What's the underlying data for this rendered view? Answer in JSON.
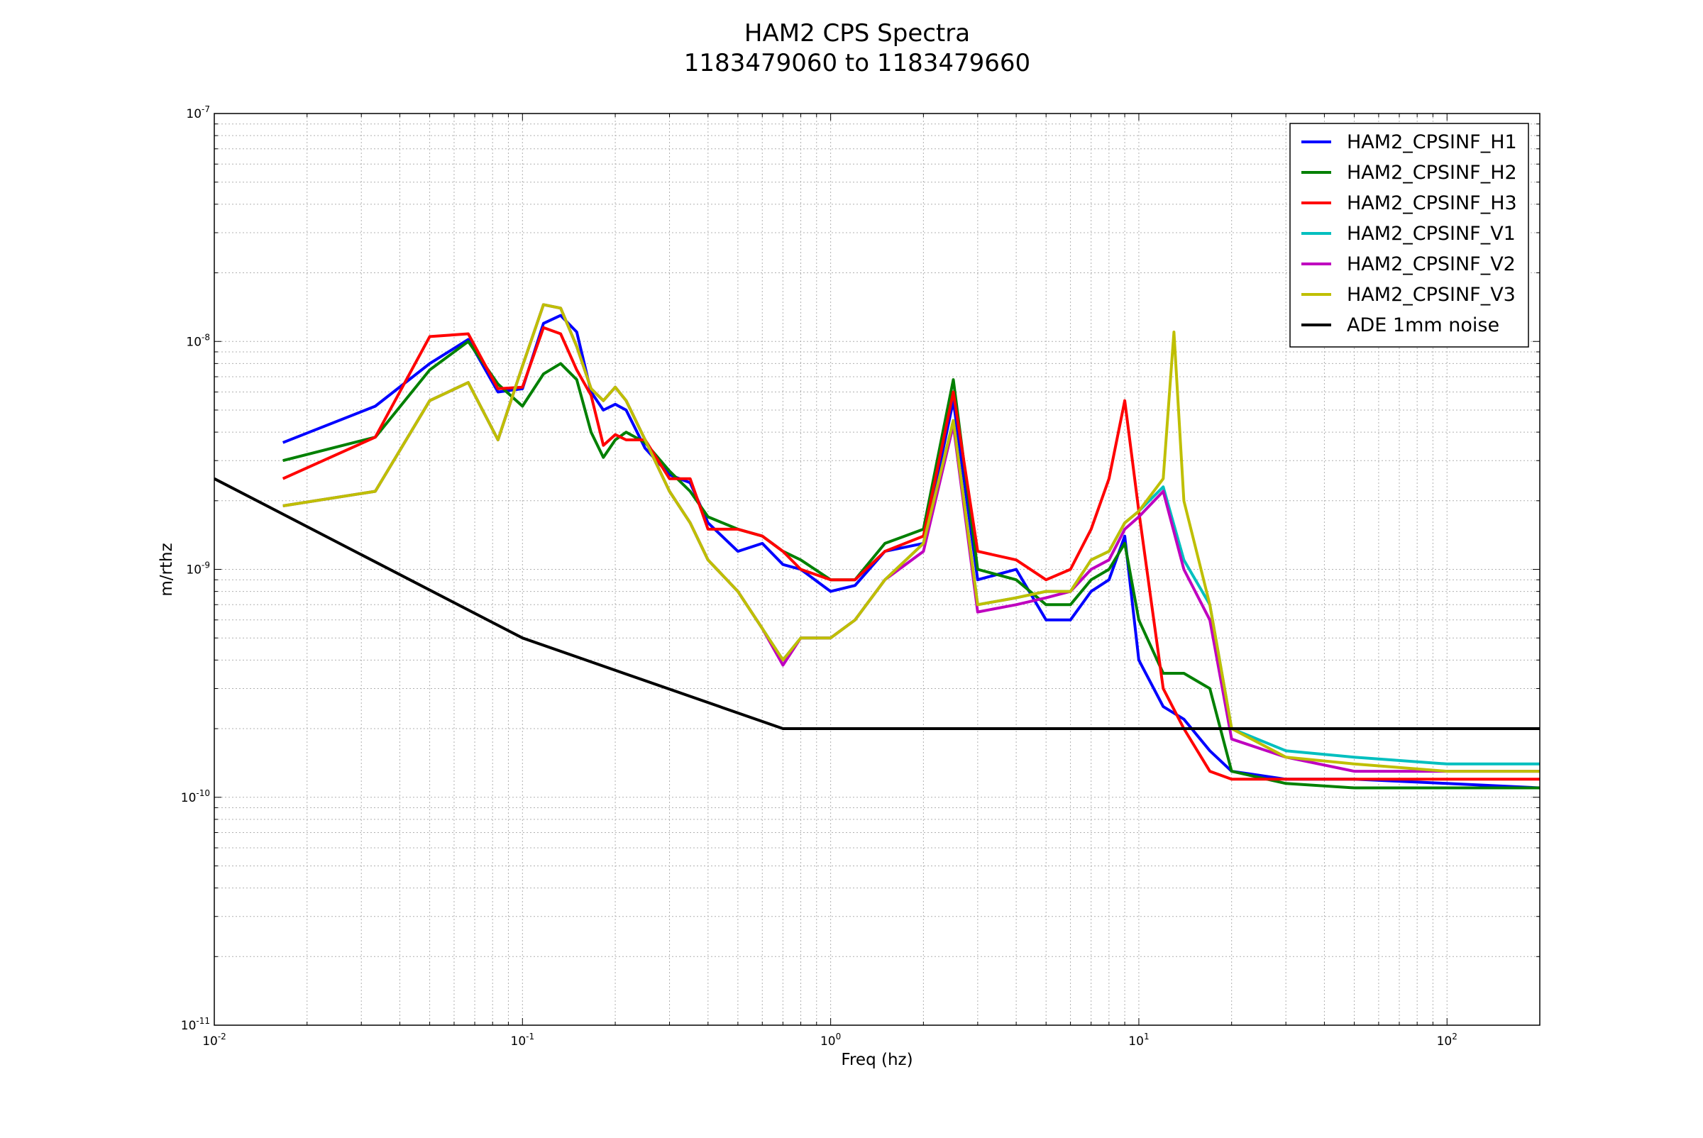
{
  "chart_data": {
    "type": "line",
    "title": "HAM2 CPS Spectra",
    "subtitle": "1183479060 to 1183479660",
    "xlabel": "Freq (hz)",
    "ylabel": "m/rthz",
    "xscale": "log",
    "yscale": "log",
    "xlim": [
      0.01,
      200
    ],
    "ylim": [
      1e-11,
      1e-07
    ],
    "grid": true,
    "legend_position": "top-right",
    "x_ticks": [
      {
        "value": 0.01,
        "base": "10",
        "exp": "-2"
      },
      {
        "value": 0.1,
        "base": "10",
        "exp": "-1"
      },
      {
        "value": 1,
        "base": "10",
        "exp": "0"
      },
      {
        "value": 10,
        "base": "10",
        "exp": "1"
      },
      {
        "value": 100,
        "base": "10",
        "exp": "2"
      }
    ],
    "y_ticks": [
      {
        "value": 1e-11,
        "base": "10",
        "exp": "-11"
      },
      {
        "value": 1e-10,
        "base": "10",
        "exp": "-10"
      },
      {
        "value": 1e-09,
        "base": "10",
        "exp": "-9"
      },
      {
        "value": 1e-08,
        "base": "10",
        "exp": "-8"
      },
      {
        "value": 1e-07,
        "base": "10",
        "exp": "-7"
      }
    ],
    "series": [
      {
        "name": "HAM2_CPSINF_H1",
        "color": "#0000ff",
        "x": [
          0.0167,
          0.0333,
          0.05,
          0.0667,
          0.0833,
          0.1,
          0.117,
          0.133,
          0.15,
          0.167,
          0.183,
          0.2,
          0.217,
          0.25,
          0.3,
          0.35,
          0.4,
          0.5,
          0.6,
          0.7,
          0.8,
          1.0,
          1.2,
          1.5,
          2.0,
          2.5,
          3.0,
          4.0,
          5.0,
          6.0,
          7.0,
          8.0,
          9.0,
          10.0,
          12.0,
          14.0,
          17.0,
          20.0,
          30.0,
          50.0,
          100.0,
          200.0
        ],
        "y": [
          3.6e-09,
          5.2e-09,
          8e-09,
          1.02e-08,
          6e-09,
          6.2e-09,
          1.2e-08,
          1.3e-08,
          1.1e-08,
          6e-09,
          5e-09,
          5.3e-09,
          5e-09,
          3.4e-09,
          2.6e-09,
          2.4e-09,
          1.6e-09,
          1.2e-09,
          1.3e-09,
          1.05e-09,
          1e-09,
          8e-10,
          8.5e-10,
          1.2e-09,
          1.3e-09,
          5.5e-09,
          9e-10,
          1e-09,
          6e-10,
          6e-10,
          8e-10,
          9e-10,
          1.4e-09,
          4e-10,
          2.5e-10,
          2.2e-10,
          1.6e-10,
          1.3e-10,
          1.2e-10,
          1.2e-10,
          1.15e-10,
          1.1e-10
        ]
      },
      {
        "name": "HAM2_CPSINF_H2",
        "color": "#008000",
        "x": [
          0.0167,
          0.0333,
          0.05,
          0.0667,
          0.0833,
          0.1,
          0.117,
          0.133,
          0.15,
          0.167,
          0.183,
          0.2,
          0.217,
          0.25,
          0.3,
          0.35,
          0.4,
          0.5,
          0.6,
          0.7,
          0.8,
          1.0,
          1.2,
          1.5,
          2.0,
          2.5,
          3.0,
          4.0,
          5.0,
          6.0,
          7.0,
          8.0,
          9.0,
          10.0,
          12.0,
          14.0,
          17.0,
          20.0,
          30.0,
          50.0,
          100.0,
          200.0
        ],
        "y": [
          3e-09,
          3.8e-09,
          7.5e-09,
          1e-08,
          6.5e-09,
          5.2e-09,
          7.2e-09,
          8e-09,
          6.8e-09,
          4e-09,
          3.1e-09,
          3.7e-09,
          4e-09,
          3.6e-09,
          2.7e-09,
          2.2e-09,
          1.7e-09,
          1.5e-09,
          1.4e-09,
          1.2e-09,
          1.1e-09,
          9e-10,
          9e-10,
          1.3e-09,
          1.5e-09,
          6.8e-09,
          1e-09,
          9e-10,
          7e-10,
          7e-10,
          9e-10,
          1e-09,
          1.3e-09,
          6e-10,
          3.5e-10,
          3.5e-10,
          3e-10,
          1.3e-10,
          1.15e-10,
          1.1e-10,
          1.1e-10,
          1.1e-10
        ]
      },
      {
        "name": "HAM2_CPSINF_H3",
        "color": "#ff0000",
        "x": [
          0.0167,
          0.0333,
          0.05,
          0.0667,
          0.0833,
          0.1,
          0.117,
          0.133,
          0.15,
          0.167,
          0.183,
          0.2,
          0.217,
          0.25,
          0.3,
          0.35,
          0.4,
          0.5,
          0.6,
          0.7,
          0.8,
          1.0,
          1.2,
          1.5,
          2.0,
          2.5,
          3.0,
          4.0,
          5.0,
          6.0,
          7.0,
          8.0,
          9.0,
          10.0,
          12.0,
          14.0,
          17.0,
          20.0,
          30.0,
          50.0,
          100.0,
          200.0
        ],
        "y": [
          2.5e-09,
          3.8e-09,
          1.05e-08,
          1.08e-08,
          6.2e-09,
          6.3e-09,
          1.15e-08,
          1.08e-08,
          7.5e-09,
          5.8e-09,
          3.5e-09,
          3.9e-09,
          3.7e-09,
          3.7e-09,
          2.5e-09,
          2.5e-09,
          1.5e-09,
          1.5e-09,
          1.4e-09,
          1.2e-09,
          1e-09,
          9e-10,
          9e-10,
          1.2e-09,
          1.4e-09,
          6e-09,
          1.2e-09,
          1.1e-09,
          9e-10,
          1e-09,
          1.5e-09,
          2.5e-09,
          5.5e-09,
          1.8e-09,
          3e-10,
          2e-10,
          1.3e-10,
          1.2e-10,
          1.2e-10,
          1.2e-10,
          1.2e-10,
          1.2e-10
        ]
      },
      {
        "name": "HAM2_CPSINF_V1",
        "color": "#00bfbf",
        "x": [
          0.0167,
          0.0333,
          0.05,
          0.0667,
          0.0833,
          0.1,
          0.117,
          0.133,
          0.15,
          0.167,
          0.183,
          0.2,
          0.217,
          0.25,
          0.3,
          0.35,
          0.4,
          0.5,
          0.6,
          0.7,
          0.8,
          1.0,
          1.2,
          1.5,
          2.0,
          2.5,
          3.0,
          4.0,
          5.0,
          6.0,
          7.0,
          8.0,
          9.0,
          10.0,
          12.0,
          14.0,
          17.0,
          20.0,
          30.0,
          50.0,
          100.0,
          200.0
        ],
        "y": [
          1.9e-09,
          2.2e-09,
          5.5e-09,
          6.6e-09,
          3.7e-09,
          7.8e-09,
          1.45e-08,
          1.4e-08,
          9.5e-09,
          6.2e-09,
          5.5e-09,
          6.3e-09,
          5.5e-09,
          3.7e-09,
          2.2e-09,
          1.6e-09,
          1.1e-09,
          8e-10,
          5.5e-10,
          4e-10,
          5e-10,
          5e-10,
          6e-10,
          9e-10,
          1.3e-09,
          4.5e-09,
          7e-10,
          7.5e-10,
          8e-10,
          8e-10,
          1.1e-09,
          1.2e-09,
          1.6e-09,
          1.8e-09,
          2.3e-09,
          1.1e-09,
          7e-10,
          2e-10,
          1.6e-10,
          1.5e-10,
          1.4e-10,
          1.4e-10
        ]
      },
      {
        "name": "HAM2_CPSINF_V2",
        "color": "#bf00bf",
        "x": [
          0.0167,
          0.0333,
          0.05,
          0.0667,
          0.0833,
          0.1,
          0.117,
          0.133,
          0.15,
          0.167,
          0.183,
          0.2,
          0.217,
          0.25,
          0.3,
          0.35,
          0.4,
          0.5,
          0.6,
          0.7,
          0.8,
          1.0,
          1.2,
          1.5,
          2.0,
          2.5,
          3.0,
          4.0,
          5.0,
          6.0,
          7.0,
          8.0,
          9.0,
          10.0,
          12.0,
          14.0,
          17.0,
          20.0,
          30.0,
          50.0,
          100.0,
          200.0
        ],
        "y": [
          1.9e-09,
          2.2e-09,
          5.5e-09,
          6.6e-09,
          3.7e-09,
          7.8e-09,
          1.45e-08,
          1.4e-08,
          9.5e-09,
          6.2e-09,
          5.5e-09,
          6.3e-09,
          5.5e-09,
          3.7e-09,
          2.2e-09,
          1.6e-09,
          1.1e-09,
          8e-10,
          5.5e-10,
          3.8e-10,
          5e-10,
          5e-10,
          6e-10,
          9e-10,
          1.2e-09,
          4.3e-09,
          6.5e-10,
          7e-10,
          7.5e-10,
          8e-10,
          1e-09,
          1.1e-09,
          1.5e-09,
          1.7e-09,
          2.2e-09,
          1e-09,
          6e-10,
          1.8e-10,
          1.5e-10,
          1.3e-10,
          1.3e-10,
          1.3e-10
        ]
      },
      {
        "name": "HAM2_CPSINF_V3",
        "color": "#bfbf00",
        "x": [
          0.0167,
          0.0333,
          0.05,
          0.0667,
          0.0833,
          0.1,
          0.117,
          0.133,
          0.15,
          0.167,
          0.183,
          0.2,
          0.217,
          0.25,
          0.3,
          0.35,
          0.4,
          0.5,
          0.6,
          0.7,
          0.8,
          1.0,
          1.2,
          1.5,
          2.0,
          2.5,
          3.0,
          4.0,
          5.0,
          6.0,
          7.0,
          8.0,
          9.0,
          10.0,
          12.0,
          13.0,
          14.0,
          17.0,
          20.0,
          30.0,
          50.0,
          100.0,
          200.0
        ],
        "y": [
          1.9e-09,
          2.2e-09,
          5.5e-09,
          6.6e-09,
          3.7e-09,
          7.8e-09,
          1.45e-08,
          1.4e-08,
          9.5e-09,
          6.2e-09,
          5.5e-09,
          6.3e-09,
          5.5e-09,
          3.7e-09,
          2.2e-09,
          1.6e-09,
          1.1e-09,
          8e-10,
          5.5e-10,
          4e-10,
          5e-10,
          5e-10,
          6e-10,
          9e-10,
          1.3e-09,
          4.5e-09,
          7e-10,
          7.5e-10,
          8e-10,
          8e-10,
          1.1e-09,
          1.2e-09,
          1.6e-09,
          1.8e-09,
          2.5e-09,
          1.1e-08,
          2e-09,
          7e-10,
          2e-10,
          1.5e-10,
          1.4e-10,
          1.3e-10,
          1.3e-10
        ]
      },
      {
        "name": "ADE 1mm noise",
        "color": "#000000",
        "x": [
          0.01,
          0.1,
          0.7,
          200.0
        ],
        "y": [
          2.5e-09,
          5e-10,
          2e-10,
          2e-10
        ]
      }
    ]
  }
}
